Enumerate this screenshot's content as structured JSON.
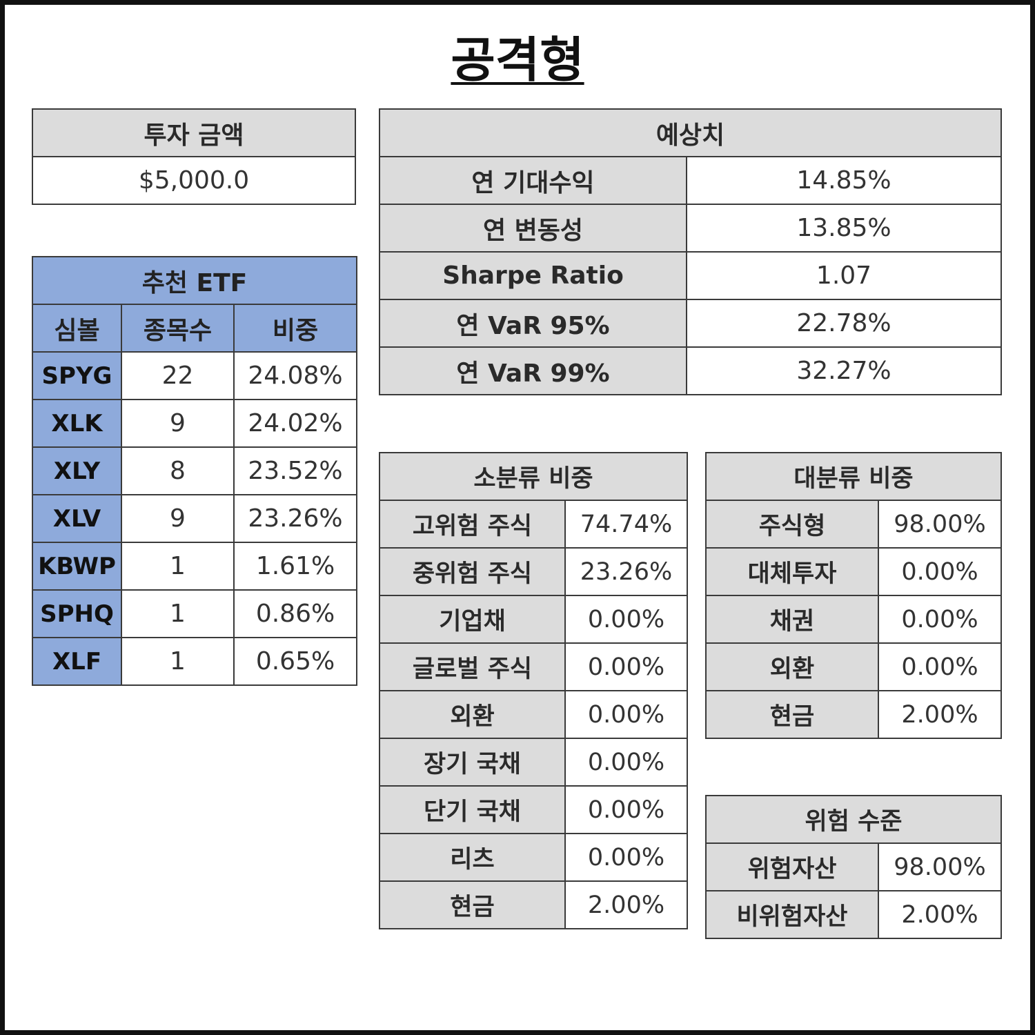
{
  "title": "공격형",
  "investment": {
    "header": "투자 금액",
    "value": "$5,000.0"
  },
  "etf": {
    "header": "추천 ETF",
    "columns": [
      "심볼",
      "종목수",
      "비중"
    ],
    "rows": [
      {
        "symbol": "SPYG",
        "count": "22",
        "weight": "24.08%"
      },
      {
        "symbol": "XLK",
        "count": "9",
        "weight": "24.02%"
      },
      {
        "symbol": "XLY",
        "count": "8",
        "weight": "23.52%"
      },
      {
        "symbol": "XLV",
        "count": "9",
        "weight": "23.26%"
      },
      {
        "symbol": "KBWP",
        "count": "1",
        "weight": "1.61%"
      },
      {
        "symbol": "SPHQ",
        "count": "1",
        "weight": "0.86%"
      },
      {
        "symbol": "XLF",
        "count": "1",
        "weight": "0.65%"
      }
    ]
  },
  "expected": {
    "header": "예상치",
    "rows": [
      {
        "label": "연 기대수익",
        "value": "14.85%"
      },
      {
        "label": "연 변동성",
        "value": "13.85%"
      },
      {
        "label": "Sharpe Ratio",
        "value": "1.07"
      },
      {
        "label": "연 VaR 95%",
        "value": "22.78%"
      },
      {
        "label": "연 VaR 99%",
        "value": "32.27%"
      }
    ]
  },
  "sub_weights": {
    "header": "소분류 비중",
    "rows": [
      {
        "label": "고위험 주식",
        "value": "74.74%"
      },
      {
        "label": "중위험 주식",
        "value": "23.26%"
      },
      {
        "label": "기업채",
        "value": "0.00%"
      },
      {
        "label": "글로벌 주식",
        "value": "0.00%"
      },
      {
        "label": "외환",
        "value": "0.00%"
      },
      {
        "label": "장기 국채",
        "value": "0.00%"
      },
      {
        "label": "단기 국채",
        "value": "0.00%"
      },
      {
        "label": "리츠",
        "value": "0.00%"
      },
      {
        "label": "현금",
        "value": "2.00%"
      }
    ]
  },
  "major_weights": {
    "header": "대분류 비중",
    "rows": [
      {
        "label": "주식형",
        "value": "98.00%"
      },
      {
        "label": "대체투자",
        "value": "0.00%"
      },
      {
        "label": "채권",
        "value": "0.00%"
      },
      {
        "label": "외환",
        "value": "0.00%"
      },
      {
        "label": "현금",
        "value": "2.00%"
      }
    ]
  },
  "risk_level": {
    "header": "위험 수준",
    "rows": [
      {
        "label": "위험자산",
        "value": "98.00%"
      },
      {
        "label": "비위험자산",
        "value": "2.00%"
      }
    ]
  },
  "colors": {
    "header_gray": "#dcdcdc",
    "etf_blue": "#8eaadb",
    "border": "#3a3a3a"
  }
}
